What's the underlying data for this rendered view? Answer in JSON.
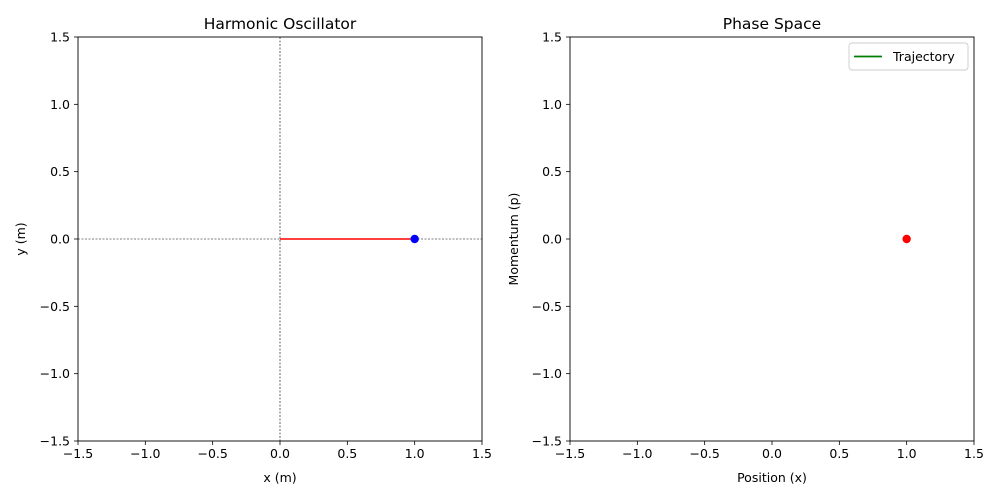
{
  "chart_data": [
    {
      "type": "line",
      "title": "Harmonic Oscillator",
      "xlabel": "x (m)",
      "ylabel": "y (m)",
      "xlim": [
        -1.5,
        1.5
      ],
      "ylim": [
        -1.5,
        1.5
      ],
      "xticks": [
        "−1.5",
        "−1.0",
        "−0.5",
        "0.0",
        "0.5",
        "1.0",
        "1.5"
      ],
      "yticks": [
        "−1.5",
        "−1.0",
        "−0.5",
        "0.0",
        "0.5",
        "1.0",
        "1.5"
      ],
      "grid": false,
      "reference_lines": [
        {
          "orientation": "horizontal",
          "value": 0,
          "style": "dashed",
          "color": "#000000"
        },
        {
          "orientation": "vertical",
          "value": 0,
          "style": "dashed",
          "color": "#000000"
        }
      ],
      "series": [
        {
          "kind": "line",
          "color": "#ff0000",
          "points": [
            [
              0,
              0
            ],
            [
              1.0,
              0
            ]
          ]
        },
        {
          "kind": "point",
          "color": "#0000ff",
          "points": [
            [
              1.0,
              0
            ]
          ]
        }
      ]
    },
    {
      "type": "line",
      "title": "Phase Space",
      "xlabel": "Position (x)",
      "ylabel": "Momentum (p)",
      "xlim": [
        -1.5,
        1.5
      ],
      "ylim": [
        -1.5,
        1.5
      ],
      "xticks": [
        "−1.5",
        "−1.0",
        "−0.5",
        "0.0",
        "0.5",
        "1.0",
        "1.5"
      ],
      "yticks": [
        "−1.5",
        "−1.0",
        "−0.5",
        "0.0",
        "0.5",
        "1.0",
        "1.5"
      ],
      "grid": false,
      "legend": {
        "position": "top-right",
        "entries": [
          {
            "name": "Trajectory",
            "color": "#008000"
          }
        ]
      },
      "series": [
        {
          "kind": "line",
          "name": "Trajectory",
          "color": "#008000",
          "points": []
        },
        {
          "kind": "point",
          "color": "#ff0000",
          "points": [
            [
              1.0,
              0
            ]
          ]
        }
      ]
    }
  ]
}
